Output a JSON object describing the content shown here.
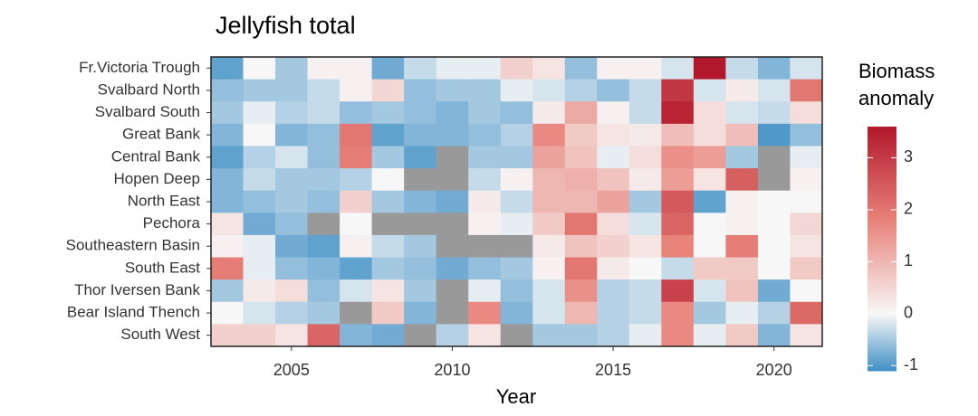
{
  "chart_data": {
    "type": "heatmap",
    "title": "Jellyfish total",
    "xlabel": "Year",
    "legend_title": [
      "Biomass",
      "anomaly"
    ],
    "x": [
      2003,
      2004,
      2005,
      2006,
      2007,
      2008,
      2009,
      2010,
      2011,
      2012,
      2013,
      2014,
      2015,
      2016,
      2017,
      2018,
      2019,
      2020,
      2021
    ],
    "xlim": [
      2002.5,
      2021.5
    ],
    "xticks": [
      2005,
      2010,
      2015,
      2020
    ],
    "categories": [
      "Fr.Victoria Trough",
      "Svalbard North",
      "Svalbard South",
      "Great Bank",
      "Central Bank",
      "Hopen Deep",
      "North East",
      "Pechora",
      "Southeastern Basin",
      "South East",
      "Thor Iversen Bank",
      "Bear Island Thench",
      "South West"
    ],
    "values": [
      [
        -0.9,
        0,
        -0.5,
        0.1,
        0.1,
        -0.8,
        -0.3,
        -0.1,
        -0.1,
        0.6,
        0.3,
        -0.6,
        0.1,
        0.1,
        -0.2,
        3.6,
        -0.3,
        -0.7,
        -0.2
      ],
      [
        -0.6,
        -0.5,
        -0.5,
        -0.3,
        0.1,
        0.5,
        -0.6,
        -0.5,
        -0.5,
        -0.1,
        -0.2,
        -0.4,
        -0.6,
        -0.3,
        3.1,
        -0.2,
        0.2,
        -0.2,
        2.0
      ],
      [
        -0.5,
        -0.1,
        -0.4,
        -0.3,
        -0.6,
        -0.5,
        -0.6,
        -0.7,
        -0.5,
        -0.6,
        0.2,
        1.2,
        0.1,
        -0.3,
        3.4,
        0.4,
        -0.2,
        -0.3,
        0.4
      ],
      [
        -0.7,
        0,
        -0.7,
        -0.6,
        2.0,
        -0.9,
        -0.7,
        -0.7,
        -0.6,
        -0.4,
        1.7,
        0.7,
        0.3,
        0.2,
        0.9,
        0.4,
        0.9,
        -1.0,
        -0.6
      ],
      [
        -0.9,
        -0.4,
        -0.2,
        -0.6,
        1.9,
        -0.5,
        -0.9,
        null,
        -0.5,
        -0.5,
        1.3,
        0.8,
        -0.1,
        0.4,
        1.6,
        1.4,
        -0.5,
        null,
        -0.1
      ],
      [
        -0.7,
        -0.3,
        -0.5,
        -0.5,
        -0.4,
        0,
        null,
        null,
        -0.3,
        0.1,
        1.0,
        1.1,
        0.8,
        0.2,
        1.4,
        0.3,
        2.4,
        null,
        0.1
      ],
      [
        -0.7,
        -0.6,
        -0.5,
        -0.6,
        0.6,
        -0.5,
        -0.7,
        -0.8,
        0.2,
        -0.3,
        1.0,
        1.0,
        1.3,
        -0.5,
        2.5,
        -0.9,
        0.1,
        0,
        0
      ],
      [
        0.3,
        -0.8,
        -0.6,
        null,
        0,
        null,
        null,
        null,
        0.1,
        -0.1,
        0.7,
        2.0,
        0.4,
        -0.2,
        2.3,
        0,
        0.1,
        0,
        0.5
      ],
      [
        0.1,
        -0.1,
        -0.8,
        -0.9,
        0.1,
        -0.3,
        -0.5,
        null,
        null,
        null,
        0.2,
        0.8,
        0.6,
        0.3,
        1.8,
        0,
        1.9,
        0,
        0.3
      ],
      [
        1.9,
        -0.1,
        -0.6,
        -0.7,
        -0.9,
        -0.5,
        -0.6,
        -0.8,
        -0.6,
        -0.5,
        0.1,
        2.0,
        0.2,
        0,
        -0.3,
        0.7,
        0.7,
        0,
        0.7
      ],
      [
        -0.5,
        0.2,
        0.4,
        -0.6,
        -0.2,
        0.3,
        -0.5,
        null,
        -0.1,
        -0.6,
        -0.2,
        1.6,
        -0.4,
        -0.3,
        2.9,
        -0.2,
        0.8,
        -0.8,
        0
      ],
      [
        0,
        -0.2,
        -0.4,
        -0.5,
        null,
        0.7,
        -0.7,
        null,
        1.7,
        -0.7,
        -0.2,
        1.0,
        -0.4,
        -0.3,
        1.7,
        -0.5,
        -0.1,
        -0.4,
        2.2
      ],
      [
        0.6,
        0.6,
        0.3,
        2.3,
        -0.7,
        -0.8,
        null,
        -0.4,
        0.3,
        null,
        -0.5,
        -0.5,
        -0.4,
        -0.1,
        1.7,
        -0.1,
        0.7,
        -0.7,
        0.3
      ]
    ],
    "zlim": [
      -1.1,
      3.6
    ],
    "zticks": [
      -1,
      0,
      1,
      2,
      3
    ],
    "color_stops": [
      [
        -1.1,
        "#3f8fc5"
      ],
      [
        0,
        "#f7f7f7"
      ],
      [
        1.8,
        "#e8837a"
      ],
      [
        3.6,
        "#b2182b"
      ]
    ],
    "na_color": "#999999"
  }
}
